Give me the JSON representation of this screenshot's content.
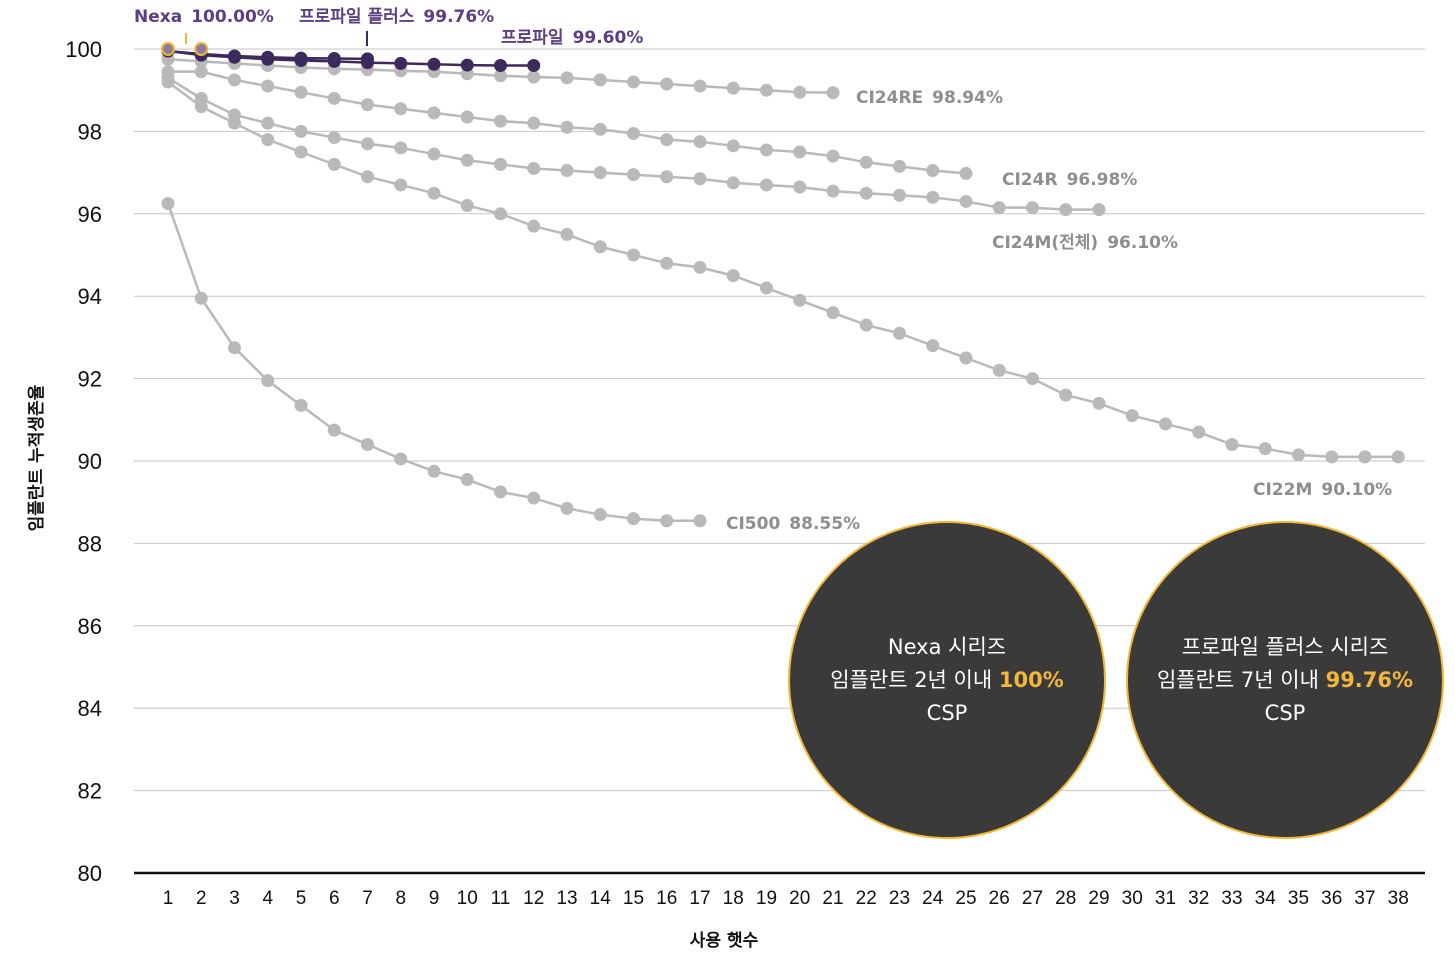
{
  "chart_data": {
    "type": "line",
    "ylabel": "임플란트 누적생존율",
    "xlabel": "사용 햇수",
    "ylim": [
      80,
      100
    ],
    "yticks": [
      80,
      82,
      84,
      86,
      88,
      90,
      92,
      94,
      96,
      98,
      100
    ],
    "xticks": [
      1,
      2,
      3,
      4,
      5,
      6,
      7,
      8,
      9,
      10,
      11,
      12,
      13,
      14,
      15,
      16,
      17,
      18,
      19,
      20,
      21,
      22,
      23,
      24,
      25,
      26,
      27,
      28,
      29,
      30,
      31,
      32,
      33,
      34,
      35,
      36,
      37,
      38
    ],
    "grid": true,
    "colors": {
      "gray": "#b9b9b9",
      "gray_label": "#8e8e8e",
      "purple": "#3d2a5c",
      "purple_label": "#5a3e86",
      "gold": "#f2b632"
    },
    "series": [
      {
        "label": "CI22M",
        "value_label": "90.10%",
        "color": "#b9b9b9",
        "x": [
          1,
          2,
          3,
          4,
          5,
          6,
          7,
          8,
          9,
          10,
          11,
          12,
          13,
          14,
          15,
          16,
          17,
          18,
          19,
          20,
          21,
          22,
          23,
          24,
          25,
          26,
          27,
          28,
          29,
          30,
          31,
          32,
          33,
          34,
          35,
          36,
          37,
          38
        ],
        "y": [
          99.2,
          98.6,
          98.2,
          97.8,
          97.5,
          97.2,
          96.9,
          96.7,
          96.5,
          96.2,
          96.0,
          95.7,
          95.5,
          95.2,
          95.0,
          94.8,
          94.7,
          94.5,
          94.2,
          93.9,
          93.6,
          93.3,
          93.1,
          92.8,
          92.5,
          92.2,
          92.0,
          91.6,
          91.4,
          91.1,
          90.9,
          90.7,
          90.4,
          90.3,
          90.15,
          90.1,
          90.1,
          90.1
        ]
      },
      {
        "label": "CI500",
        "value_label": "88.55%",
        "color": "#b9b9b9",
        "x": [
          1,
          2,
          3,
          4,
          5,
          6,
          7,
          8,
          9,
          10,
          11,
          12,
          13,
          14,
          15,
          16,
          17
        ],
        "y": [
          96.25,
          93.95,
          92.75,
          91.95,
          91.35,
          90.75,
          90.4,
          90.05,
          89.75,
          89.55,
          89.25,
          89.1,
          88.85,
          88.7,
          88.6,
          88.55,
          88.55
        ]
      },
      {
        "label": "CI24M(전체)",
        "value_label": "96.10%",
        "color": "#b9b9b9",
        "x": [
          1,
          2,
          3,
          4,
          5,
          6,
          7,
          8,
          9,
          10,
          11,
          12,
          13,
          14,
          15,
          16,
          17,
          18,
          19,
          20,
          21,
          22,
          23,
          24,
          25,
          26,
          27,
          28,
          29
        ],
        "y": [
          99.3,
          98.8,
          98.4,
          98.2,
          98.0,
          97.85,
          97.7,
          97.6,
          97.45,
          97.3,
          97.2,
          97.1,
          97.05,
          97.0,
          96.95,
          96.9,
          96.85,
          96.75,
          96.7,
          96.65,
          96.55,
          96.5,
          96.45,
          96.4,
          96.3,
          96.15,
          96.15,
          96.1,
          96.1
        ]
      },
      {
        "label": "CI24R",
        "value_label": "96.98%",
        "color": "#b9b9b9",
        "x": [
          1,
          2,
          3,
          4,
          5,
          6,
          7,
          8,
          9,
          10,
          11,
          12,
          13,
          14,
          15,
          16,
          17,
          18,
          19,
          20,
          21,
          22,
          23,
          24,
          25
        ],
        "y": [
          99.45,
          99.45,
          99.25,
          99.1,
          98.95,
          98.8,
          98.65,
          98.55,
          98.45,
          98.35,
          98.25,
          98.2,
          98.1,
          98.05,
          97.95,
          97.8,
          97.75,
          97.65,
          97.55,
          97.5,
          97.4,
          97.25,
          97.15,
          97.05,
          96.98
        ]
      },
      {
        "label": "CI24RE",
        "value_label": "98.94%",
        "color": "#b9b9b9",
        "x": [
          1,
          2,
          3,
          4,
          5,
          6,
          7,
          8,
          9,
          10,
          11,
          12,
          13,
          14,
          15,
          16,
          17,
          18,
          19,
          20,
          21
        ],
        "y": [
          99.75,
          99.7,
          99.65,
          99.6,
          99.55,
          99.52,
          99.5,
          99.47,
          99.45,
          99.4,
          99.35,
          99.32,
          99.3,
          99.25,
          99.2,
          99.15,
          99.1,
          99.05,
          99.0,
          98.95,
          98.94
        ]
      },
      {
        "label": "프로파일",
        "value_label": "99.60%",
        "color": "#3d2a5c",
        "x": [
          1,
          2,
          3,
          4,
          5,
          6,
          7,
          8,
          9,
          10,
          11,
          12
        ],
        "y": [
          99.95,
          99.85,
          99.8,
          99.75,
          99.72,
          99.7,
          99.67,
          99.65,
          99.63,
          99.61,
          99.6,
          99.6
        ]
      },
      {
        "label": "프로파일 플러스",
        "value_label": "99.76%",
        "color": "#3d2a5c",
        "x": [
          1,
          2,
          3,
          4,
          5,
          6,
          7
        ],
        "y": [
          99.95,
          99.88,
          99.83,
          99.8,
          99.78,
          99.77,
          99.76
        ]
      },
      {
        "label": "Nexa",
        "value_label": "100.00%",
        "color": "#f2b632",
        "x": [
          1,
          2
        ],
        "y": [
          100.0,
          100.0
        ]
      }
    ],
    "annotations": [
      {
        "name": "nexa-bubble",
        "line1": "Nexa 시리즈",
        "line2_prefix": "임플란트 2년 이내 ",
        "highlight": "100%",
        "line3": "CSP"
      },
      {
        "name": "profile-plus-bubble",
        "line1": "프로파일 플러스 시리즈",
        "line2_prefix": "임플란트 7년 이내 ",
        "highlight": "99.76%",
        "line3": "CSP"
      }
    ]
  }
}
